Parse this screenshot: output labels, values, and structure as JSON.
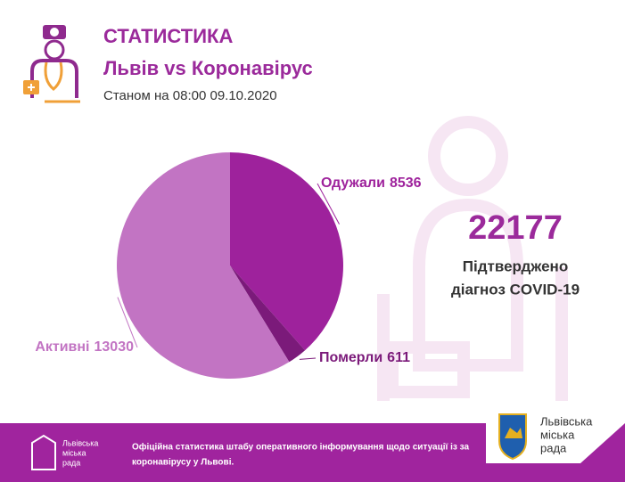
{
  "header": {
    "title": "СТАТИСТИКА",
    "subtitle": "Львів vs Коронавірус",
    "date": "Станом на 08:00 09.10.2020"
  },
  "chart_data": {
    "type": "pie",
    "categories": [
      "Одужали",
      "Померли",
      "Активні"
    ],
    "values": [
      8536,
      611,
      13030
    ],
    "colors": [
      "#9e229c",
      "#7b1a7a",
      "#c274c3"
    ]
  },
  "summary": {
    "total": 22177,
    "caption": [
      "Підтверджено",
      "діагноз COVID-19"
    ]
  },
  "footer": {
    "logo_left": [
      "Львівська",
      "міська",
      "рада"
    ],
    "text": [
      "Офіційна статистика штабу оперативного інформування щодо ситуації із за",
      "коронавірусу у Львові."
    ],
    "logo_right": [
      "Львівська",
      "міська",
      "рада"
    ]
  }
}
